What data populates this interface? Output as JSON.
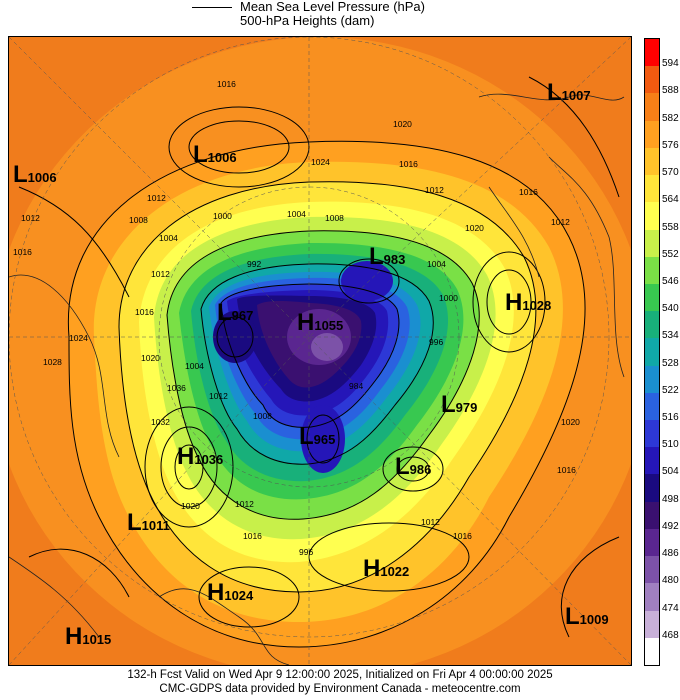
{
  "legend": {
    "line1": "Mean Sea Level Pressure (hPa)",
    "line2": "500-hPa Heights (dam)"
  },
  "colorbar": {
    "labels": [
      "594",
      "588",
      "582",
      "576",
      "570",
      "564",
      "558",
      "552",
      "546",
      "540",
      "534",
      "528",
      "522",
      "516",
      "510",
      "504",
      "498",
      "492",
      "486",
      "480",
      "474",
      "468"
    ],
    "colors": [
      "#ff0000",
      "#f25a10",
      "#f77f17",
      "#ffa020",
      "#ffc32a",
      "#ffe53a",
      "#ffff50",
      "#c8f04a",
      "#7ae046",
      "#38c850",
      "#18b07a",
      "#10a8a8",
      "#1a8fd0",
      "#2a62e0",
      "#2d38d6",
      "#2516b8",
      "#1a0a80",
      "#3a1070",
      "#5a2690",
      "#7c52a8",
      "#a080c0",
      "#c8b0d8",
      "#ffffff"
    ]
  },
  "systems": [
    {
      "type": "L",
      "value": "1007"
    },
    {
      "type": "L",
      "value": "1006"
    },
    {
      "type": "L",
      "value": "1006"
    },
    {
      "type": "L",
      "value": "983"
    },
    {
      "type": "L",
      "value": "967"
    },
    {
      "type": "H",
      "value": "1055"
    },
    {
      "type": "H",
      "value": "1028"
    },
    {
      "type": "L",
      "value": "979"
    },
    {
      "type": "L",
      "value": "965"
    },
    {
      "type": "H",
      "value": "1036"
    },
    {
      "type": "L",
      "value": "986"
    },
    {
      "type": "L",
      "value": "1011"
    },
    {
      "type": "H",
      "value": "1022"
    },
    {
      "type": "H",
      "value": "1024"
    },
    {
      "type": "L",
      "value": "1009"
    },
    {
      "type": "H",
      "value": "1015"
    }
  ],
  "isobar_labels": [
    "1016",
    "1020",
    "1024",
    "1016",
    "1012",
    "1016",
    "1020",
    "1012",
    "1008",
    "1004",
    "1000",
    "1004",
    "1008",
    "1012",
    "1016",
    "1012",
    "1016",
    "1020",
    "1024",
    "1028",
    "1032",
    "1036",
    "1012",
    "1016",
    "1020",
    "1004",
    "1000",
    "996",
    "992",
    "984",
    "1012",
    "1016",
    "1020",
    "1012",
    "1016",
    "1012",
    "1008",
    "1004",
    "996"
  ],
  "footer": {
    "line1": "132-h Fcst Valid on Wed Apr  9 12:00:00 2025, Initialized on Fri Apr  4 00:00:00 2025",
    "line2": "CMC-GDPS data provided by Environment Canada - meteocentre.com"
  }
}
